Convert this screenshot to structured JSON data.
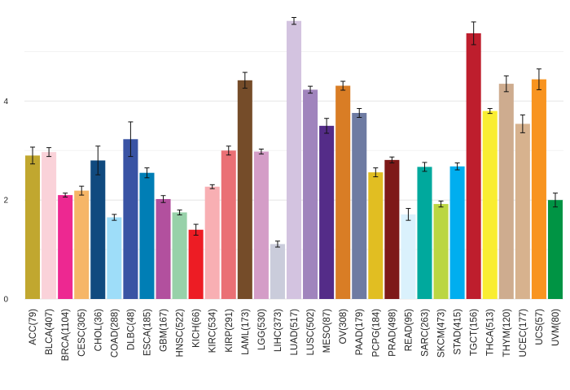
{
  "chart_data": {
    "type": "bar",
    "title": "",
    "xlabel": "",
    "ylabel": "",
    "ylim": [
      0,
      5.8
    ],
    "yticks": [
      0,
      2,
      4
    ],
    "grid": true,
    "legend": "none",
    "categories": [
      "ACC(79)",
      "BLCA(407)",
      "BRCA(1104)",
      "CESC(305)",
      "CHOL(36)",
      "COAD(288)",
      "DLBC(48)",
      "ESCA(185)",
      "GBM(167)",
      "HNSC(522)",
      "KICH(66)",
      "KIRC(534)",
      "KIRP(291)",
      "LAML(173)",
      "LGG(530)",
      "LIHC(373)",
      "LUAD(517)",
      "LUSC(502)",
      "MESO(87)",
      "OV(308)",
      "PAAD(179)",
      "PCPG(184)",
      "PRAD(498)",
      "READ(95)",
      "SARC(263)",
      "SKCM(473)",
      "STAD(415)",
      "TGCT(156)",
      "THCA(513)",
      "THYM(120)",
      "UCEC(177)",
      "UCS(57)",
      "UVM(80)"
    ],
    "values": [
      2.9,
      2.97,
      2.1,
      2.19,
      2.8,
      1.65,
      3.23,
      2.55,
      2.02,
      1.75,
      1.4,
      2.27,
      3.0,
      4.42,
      2.98,
      1.11,
      5.62,
      4.23,
      3.5,
      4.31,
      3.76,
      2.56,
      2.81,
      1.71,
      2.67,
      1.92,
      2.68,
      5.37,
      3.8,
      4.35,
      3.54,
      4.44,
      2.0
    ],
    "errors": [
      0.17,
      0.09,
      0.04,
      0.09,
      0.29,
      0.06,
      0.35,
      0.1,
      0.07,
      0.05,
      0.11,
      0.04,
      0.09,
      0.16,
      0.05,
      0.06,
      0.07,
      0.07,
      0.15,
      0.09,
      0.09,
      0.09,
      0.06,
      0.12,
      0.09,
      0.06,
      0.07,
      0.23,
      0.05,
      0.16,
      0.18,
      0.21,
      0.14
    ],
    "colors": [
      "#C1A72F",
      "#FAD2D9",
      "#ED2891",
      "#F6B667",
      "#104A7F",
      "#9EDDF9",
      "#3953A4",
      "#007EB5",
      "#B2509E",
      "#97D1A9",
      "#ED1C24",
      "#F8AFB3",
      "#EA7075",
      "#754C29",
      "#D49DC7",
      "#CACCDB",
      "#D3C3E0",
      "#A084BD",
      "#542C88",
      "#D97D25",
      "#6E7BA2",
      "#E1BE22",
      "#7E1918",
      "#DAF1FC",
      "#00A99D",
      "#BBD642",
      "#00AEEF",
      "#BE1E2D",
      "#F9ED32",
      "#CEAC8F",
      "#D7B28E",
      "#F89420",
      "#009444"
    ]
  }
}
